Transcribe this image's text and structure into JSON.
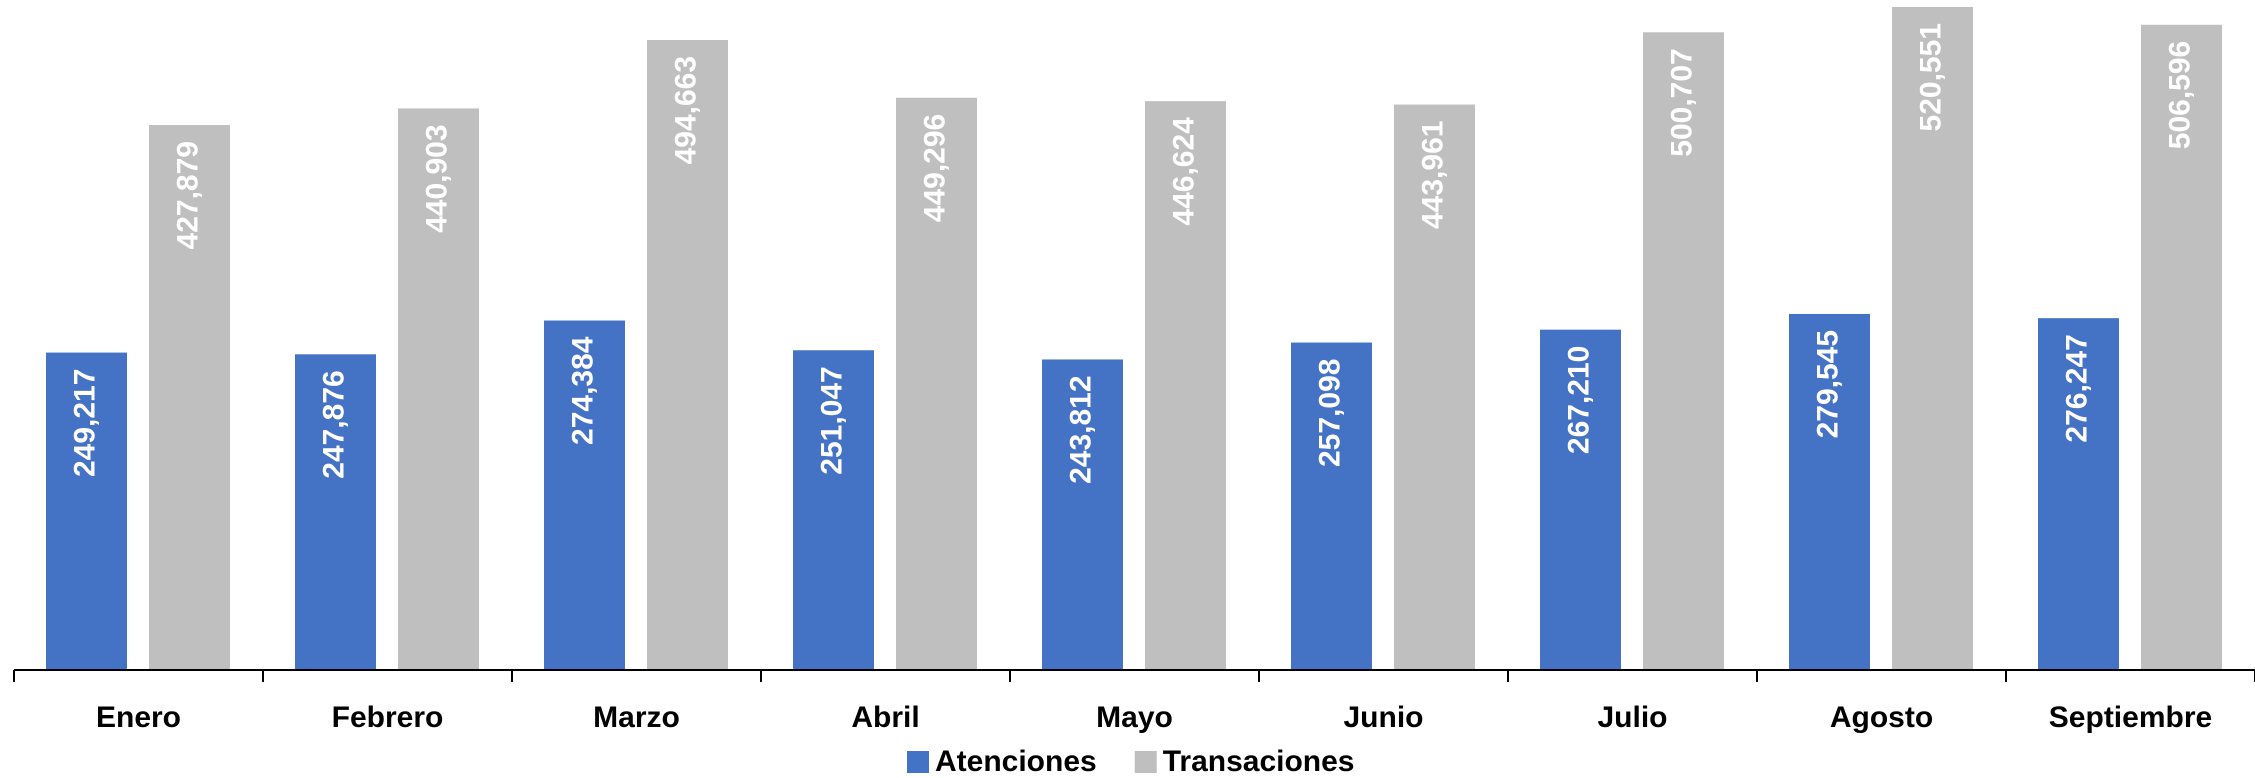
{
  "chart_data": {
    "type": "bar",
    "categories": [
      "Enero",
      "Febrero",
      "Marzo",
      "Abril",
      "Mayo",
      "Junio",
      "Julio",
      "Agosto",
      "Septiembre"
    ],
    "series": [
      {
        "name": "Atenciones",
        "color": "#4472c4",
        "values": [
          249217,
          247876,
          274384,
          251047,
          243812,
          257098,
          267210,
          279545,
          276247
        ],
        "value_labels": [
          "249,217",
          "247,876",
          "274,384",
          "251,047",
          "243,812",
          "257,098",
          "267,210",
          "279,545",
          "276,247"
        ]
      },
      {
        "name": "Transaciones",
        "color": "#bfbfbf",
        "values": [
          427879,
          440903,
          494663,
          449296,
          446624,
          443961,
          500707,
          520551,
          506596
        ],
        "value_labels": [
          "427,879",
          "440,903",
          "494,663",
          "449,296",
          "446,624",
          "443,961",
          "500,707",
          "520,551",
          "506,596"
        ]
      }
    ],
    "legend": "bottom"
  }
}
